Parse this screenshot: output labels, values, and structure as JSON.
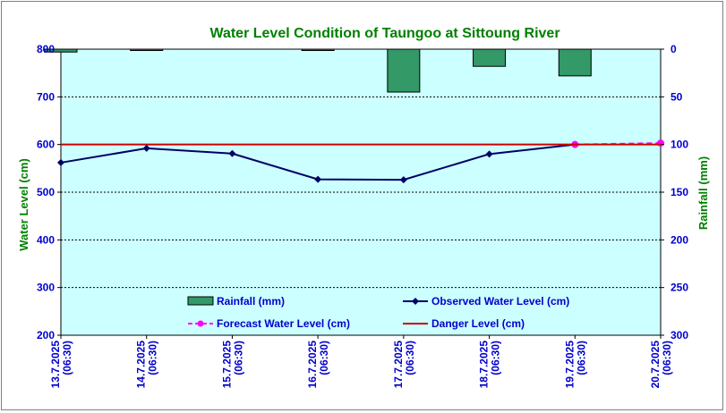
{
  "chart_data": {
    "type": "line",
    "title": "Water Level Condition of Taungoo at  Sittoung River",
    "ylabel": "Water Level (cm)",
    "y2label": "Rainfall (mm)",
    "ylim": [
      200,
      800
    ],
    "y_ticks": [
      "200",
      "300",
      "400",
      "500",
      "600",
      "700",
      "800"
    ],
    "y2lim": [
      300,
      0
    ],
    "y2_ticks": [
      "0",
      "50",
      "100",
      "150",
      "200",
      "250",
      "300"
    ],
    "categories": [
      [
        "13.7.2025",
        "(06:30)"
      ],
      [
        "14.7.2025",
        "(06:30)"
      ],
      [
        "15.7.2025",
        "(06:30)"
      ],
      [
        "16.7.2025",
        "(06:30)"
      ],
      [
        "17.7.2025",
        "(06:30)"
      ],
      [
        "18.7.2025",
        "(06:30)"
      ],
      [
        "19.7.2025",
        "(06:30)"
      ],
      [
        "20.7.2025",
        "(06:30)"
      ]
    ],
    "grid": true,
    "legend_placement": "bottom-inside",
    "series": [
      {
        "name": "Rainfall (mm)",
        "type": "bar",
        "axis": "right",
        "color": "#339966",
        "values": [
          3,
          1,
          null,
          1,
          45,
          18,
          28,
          null
        ]
      },
      {
        "name": "Observed Water Level (cm)",
        "type": "line",
        "axis": "left",
        "color": "#000066",
        "marker": "diamond",
        "values": [
          562,
          592,
          581,
          527,
          526,
          580,
          600,
          null
        ]
      },
      {
        "name": "Forecast Water Level (cm)",
        "type": "line",
        "axis": "left",
        "color": "#ff00ff",
        "dash": true,
        "marker": "circle",
        "values": [
          null,
          null,
          null,
          null,
          null,
          null,
          600,
          603
        ]
      },
      {
        "name": "Danger Level (cm)",
        "type": "line",
        "axis": "left",
        "color": "#cc0000",
        "values": [
          600,
          600,
          600,
          600,
          600,
          600,
          600,
          600
        ]
      }
    ]
  },
  "colors": {
    "plot_background": "#ccffff",
    "title": "#008000",
    "left_axis_text": "#0000cc",
    "right_axis_text": "#0000cc",
    "legend_text": "#0000cc"
  }
}
